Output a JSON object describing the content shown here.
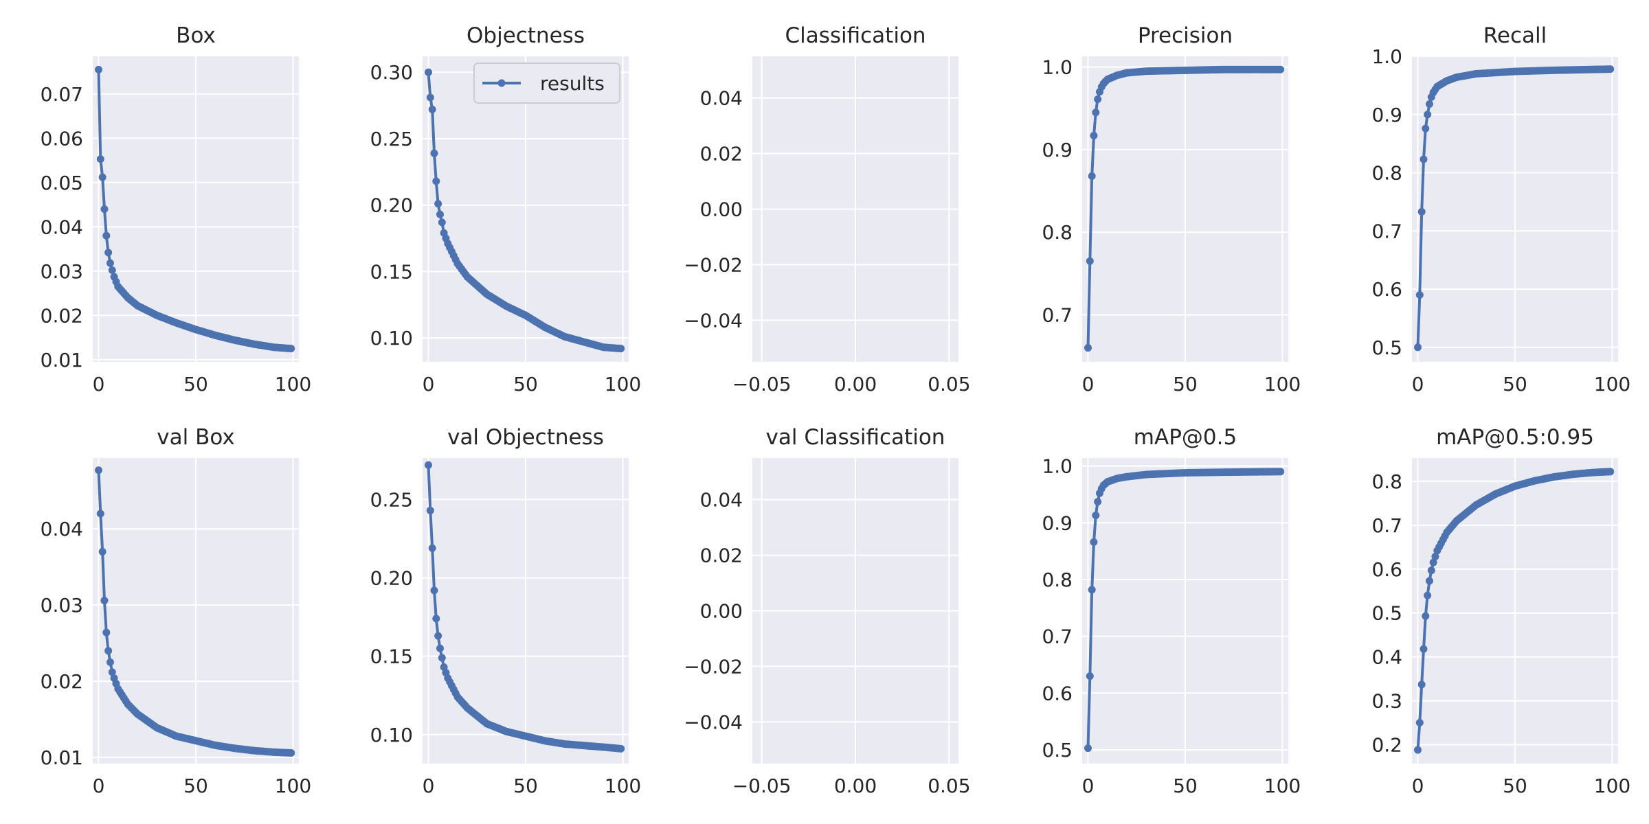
{
  "colors": {
    "panel_bg": "#eaeaf2",
    "grid": "#ffffff",
    "series": "#4c72b0",
    "text": "#262626"
  },
  "legend": {
    "label": "results",
    "panel": "Objectness",
    "placement": "upper right"
  },
  "chart_data": [
    {
      "type": "line",
      "title": "Box",
      "x_start": 0,
      "x_end": 99,
      "n_points": 100,
      "xlim": [
        -3,
        103
      ],
      "ylim": [
        0.0095,
        0.0785
      ],
      "xticks": [
        0,
        50,
        100
      ],
      "xtick_labels": [
        "0",
        "50",
        "100"
      ],
      "yticks": [
        0.01,
        0.02,
        0.03,
        0.04,
        0.05,
        0.06,
        0.07
      ],
      "ytick_labels": [
        "0.01",
        "0.02",
        "0.03",
        "0.04",
        "0.05",
        "0.06",
        "0.07"
      ],
      "series": [
        {
          "shape": "decay",
          "start": 0.0755,
          "end": 0.0125,
          "anchors": [
            [
              0,
              0.0755
            ],
            [
              1,
              0.0553
            ],
            [
              2,
              0.0512
            ],
            [
              3,
              0.044
            ],
            [
              4,
              0.038
            ],
            [
              5,
              0.0342
            ],
            [
              6,
              0.0318
            ],
            [
              7,
              0.0302
            ],
            [
              8,
              0.0287
            ],
            [
              10,
              0.0265
            ],
            [
              15,
              0.024
            ],
            [
              20,
              0.0222
            ],
            [
              30,
              0.02
            ],
            [
              40,
              0.0183
            ],
            [
              50,
              0.0168
            ],
            [
              60,
              0.0155
            ],
            [
              70,
              0.0144
            ],
            [
              80,
              0.0135
            ],
            [
              90,
              0.0128
            ],
            [
              99,
              0.0125
            ]
          ]
        }
      ]
    },
    {
      "type": "line",
      "title": "Objectness",
      "x_start": 0,
      "x_end": 99,
      "n_points": 100,
      "xlim": [
        -3,
        103
      ],
      "ylim": [
        0.082,
        0.312
      ],
      "xticks": [
        0,
        50,
        100
      ],
      "xtick_labels": [
        "0",
        "50",
        "100"
      ],
      "yticks": [
        0.1,
        0.15,
        0.2,
        0.25,
        0.3
      ],
      "ytick_labels": [
        "0.10",
        "0.15",
        "0.20",
        "0.25",
        "0.30"
      ],
      "series": [
        {
          "name": "results",
          "shape": "decay",
          "start": 0.3,
          "end": 0.092,
          "anchors": [
            [
              0,
              0.3
            ],
            [
              1,
              0.281
            ],
            [
              2,
              0.272
            ],
            [
              3,
              0.239
            ],
            [
              4,
              0.218
            ],
            [
              5,
              0.201
            ],
            [
              6,
              0.193
            ],
            [
              7,
              0.187
            ],
            [
              8,
              0.179
            ],
            [
              10,
              0.171
            ],
            [
              15,
              0.156
            ],
            [
              20,
              0.146
            ],
            [
              30,
              0.133
            ],
            [
              40,
              0.124
            ],
            [
              50,
              0.117
            ],
            [
              60,
              0.108
            ],
            [
              70,
              0.101
            ],
            [
              80,
              0.097
            ],
            [
              90,
              0.093
            ],
            [
              99,
              0.092
            ]
          ]
        }
      ]
    },
    {
      "type": "line",
      "title": "Classification",
      "x_start": 0,
      "x_end": 0,
      "n_points": 0,
      "xlim": [
        -0.055,
        0.055
      ],
      "ylim": [
        -0.055,
        0.055
      ],
      "xticks": [
        -0.05,
        0.0,
        0.05
      ],
      "xtick_labels": [
        "−0.05",
        "0.00",
        "0.05"
      ],
      "yticks": [
        -0.04,
        -0.02,
        0.0,
        0.02,
        0.04
      ],
      "ytick_labels": [
        "−0.04",
        "−0.02",
        "0.00",
        "0.02",
        "0.04"
      ],
      "series": []
    },
    {
      "type": "line",
      "title": "Precision",
      "x_start": 0,
      "x_end": 99,
      "n_points": 100,
      "xlim": [
        -3,
        103
      ],
      "ylim": [
        0.643,
        1.013
      ],
      "xticks": [
        0,
        50,
        100
      ],
      "xtick_labels": [
        "0",
        "50",
        "100"
      ],
      "yticks": [
        0.7,
        0.8,
        0.9,
        1.0
      ],
      "ytick_labels": [
        "0.7",
        "0.8",
        "0.9",
        "1.0"
      ],
      "series": [
        {
          "shape": "rise",
          "start": 0.66,
          "end": 0.997,
          "anchors": [
            [
              0,
              0.66
            ],
            [
              1,
              0.765
            ],
            [
              2,
              0.868
            ],
            [
              3,
              0.917
            ],
            [
              4,
              0.945
            ],
            [
              5,
              0.961
            ],
            [
              6,
              0.97
            ],
            [
              7,
              0.976
            ],
            [
              8,
              0.98
            ],
            [
              10,
              0.985
            ],
            [
              15,
              0.99
            ],
            [
              20,
              0.993
            ],
            [
              30,
              0.995
            ],
            [
              50,
              0.996
            ],
            [
              70,
              0.997
            ],
            [
              99,
              0.997
            ]
          ]
        }
      ]
    },
    {
      "type": "line",
      "title": "Recall",
      "x_start": 0,
      "x_end": 99,
      "n_points": 100,
      "xlim": [
        -3,
        103
      ],
      "ylim": [
        0.475,
        1.0
      ],
      "xticks": [
        0,
        50,
        100
      ],
      "xtick_labels": [
        "0",
        "50",
        "100"
      ],
      "yticks": [
        0.5,
        0.6,
        0.7,
        0.8,
        0.9,
        1.0
      ],
      "ytick_labels": [
        "0.5",
        "0.6",
        "0.7",
        "0.8",
        "0.9",
        "1.0"
      ],
      "series": [
        {
          "shape": "rise",
          "start": 0.5,
          "end": 0.978,
          "anchors": [
            [
              0,
              0.5
            ],
            [
              1,
              0.59
            ],
            [
              2,
              0.733
            ],
            [
              3,
              0.823
            ],
            [
              4,
              0.876
            ],
            [
              5,
              0.9
            ],
            [
              6,
              0.918
            ],
            [
              7,
              0.93
            ],
            [
              8,
              0.938
            ],
            [
              10,
              0.948
            ],
            [
              15,
              0.958
            ],
            [
              20,
              0.964
            ],
            [
              30,
              0.97
            ],
            [
              50,
              0.974
            ],
            [
              70,
              0.976
            ],
            [
              99,
              0.978
            ]
          ]
        }
      ]
    },
    {
      "type": "line",
      "title": "val Box",
      "x_start": 0,
      "x_end": 99,
      "n_points": 100,
      "xlim": [
        -3,
        103
      ],
      "ylim": [
        0.0092,
        0.0493
      ],
      "xticks": [
        0,
        50,
        100
      ],
      "xtick_labels": [
        "0",
        "50",
        "100"
      ],
      "yticks": [
        0.01,
        0.02,
        0.03,
        0.04
      ],
      "ytick_labels": [
        "0.01",
        "0.02",
        "0.03",
        "0.04"
      ],
      "series": [
        {
          "shape": "decay",
          "start": 0.0477,
          "end": 0.0106,
          "anchors": [
            [
              0,
              0.0477
            ],
            [
              1,
              0.042
            ],
            [
              2,
              0.037
            ],
            [
              3,
              0.0306
            ],
            [
              4,
              0.0264
            ],
            [
              5,
              0.024
            ],
            [
              6,
              0.0225
            ],
            [
              7,
              0.0212
            ],
            [
              8,
              0.0204
            ],
            [
              10,
              0.019
            ],
            [
              15,
              0.017
            ],
            [
              20,
              0.0157
            ],
            [
              30,
              0.0139
            ],
            [
              40,
              0.0128
            ],
            [
              50,
              0.0122
            ],
            [
              60,
              0.0116
            ],
            [
              70,
              0.0112
            ],
            [
              80,
              0.0109
            ],
            [
              90,
              0.0107
            ],
            [
              99,
              0.0106
            ]
          ]
        }
      ]
    },
    {
      "type": "line",
      "title": "val Objectness",
      "x_start": 0,
      "x_end": 99,
      "n_points": 100,
      "xlim": [
        -3,
        103
      ],
      "ylim": [
        0.0815,
        0.2765
      ],
      "xticks": [
        0,
        50,
        100
      ],
      "xtick_labels": [
        "0",
        "50",
        "100"
      ],
      "yticks": [
        0.1,
        0.15,
        0.2,
        0.25
      ],
      "ytick_labels": [
        "0.10",
        "0.15",
        "0.20",
        "0.25"
      ],
      "series": [
        {
          "shape": "decay",
          "start": 0.272,
          "end": 0.091,
          "anchors": [
            [
              0,
              0.272
            ],
            [
              1,
              0.243
            ],
            [
              2,
              0.219
            ],
            [
              3,
              0.192
            ],
            [
              4,
              0.174
            ],
            [
              5,
              0.163
            ],
            [
              6,
              0.155
            ],
            [
              7,
              0.149
            ],
            [
              8,
              0.143
            ],
            [
              10,
              0.136
            ],
            [
              15,
              0.124
            ],
            [
              20,
              0.117
            ],
            [
              30,
              0.107
            ],
            [
              40,
              0.102
            ],
            [
              50,
              0.099
            ],
            [
              60,
              0.096
            ],
            [
              70,
              0.094
            ],
            [
              80,
              0.093
            ],
            [
              90,
              0.092
            ],
            [
              99,
              0.091
            ]
          ]
        }
      ]
    },
    {
      "type": "line",
      "title": "val Classification",
      "x_start": 0,
      "x_end": 0,
      "n_points": 0,
      "xlim": [
        -0.055,
        0.055
      ],
      "ylim": [
        -0.055,
        0.055
      ],
      "xticks": [
        -0.05,
        0.0,
        0.05
      ],
      "xtick_labels": [
        "−0.05",
        "0.00",
        "0.05"
      ],
      "yticks": [
        -0.04,
        -0.02,
        0.0,
        0.02,
        0.04
      ],
      "ytick_labels": [
        "−0.04",
        "−0.02",
        "0.00",
        "0.02",
        "0.04"
      ],
      "series": []
    },
    {
      "type": "line",
      "title": "mAP@0.5",
      "x_start": 0,
      "x_end": 99,
      "n_points": 100,
      "xlim": [
        -3,
        103
      ],
      "ylim": [
        0.476,
        1.014
      ],
      "xticks": [
        0,
        50,
        100
      ],
      "xtick_labels": [
        "0",
        "50",
        "100"
      ],
      "yticks": [
        0.5,
        0.6,
        0.7,
        0.8,
        0.9,
        1.0
      ],
      "ytick_labels": [
        "0.5",
        "0.6",
        "0.7",
        "0.8",
        "0.9",
        "1.0"
      ],
      "series": [
        {
          "shape": "rise",
          "start": 0.503,
          "end": 0.99,
          "anchors": [
            [
              0,
              0.503
            ],
            [
              1,
              0.63
            ],
            [
              2,
              0.782
            ],
            [
              3,
              0.866
            ],
            [
              4,
              0.913
            ],
            [
              5,
              0.937
            ],
            [
              6,
              0.952
            ],
            [
              7,
              0.96
            ],
            [
              8,
              0.966
            ],
            [
              10,
              0.972
            ],
            [
              15,
              0.978
            ],
            [
              20,
              0.981
            ],
            [
              30,
              0.985
            ],
            [
              50,
              0.988
            ],
            [
              70,
              0.989
            ],
            [
              99,
              0.99
            ]
          ]
        }
      ]
    },
    {
      "type": "line",
      "title": "mAP@0.5:0.95",
      "x_start": 0,
      "x_end": 99,
      "n_points": 100,
      "xlim": [
        -3,
        103
      ],
      "ylim": [
        0.157,
        0.853
      ],
      "xticks": [
        0,
        50,
        100
      ],
      "xtick_labels": [
        "0",
        "50",
        "100"
      ],
      "yticks": [
        0.2,
        0.3,
        0.4,
        0.5,
        0.6,
        0.7,
        0.8
      ],
      "ytick_labels": [
        "0.2",
        "0.3",
        "0.4",
        "0.5",
        "0.6",
        "0.7",
        "0.8"
      ],
      "series": [
        {
          "shape": "rise",
          "start": 0.188,
          "end": 0.822,
          "anchors": [
            [
              0,
              0.188
            ],
            [
              1,
              0.25
            ],
            [
              2,
              0.337
            ],
            [
              3,
              0.418
            ],
            [
              4,
              0.493
            ],
            [
              5,
              0.54
            ],
            [
              6,
              0.573
            ],
            [
              7,
              0.597
            ],
            [
              8,
              0.615
            ],
            [
              10,
              0.642
            ],
            [
              15,
              0.684
            ],
            [
              20,
              0.71
            ],
            [
              30,
              0.746
            ],
            [
              40,
              0.771
            ],
            [
              50,
              0.789
            ],
            [
              60,
              0.801
            ],
            [
              70,
              0.81
            ],
            [
              80,
              0.816
            ],
            [
              90,
              0.82
            ],
            [
              99,
              0.822
            ]
          ]
        }
      ]
    }
  ]
}
